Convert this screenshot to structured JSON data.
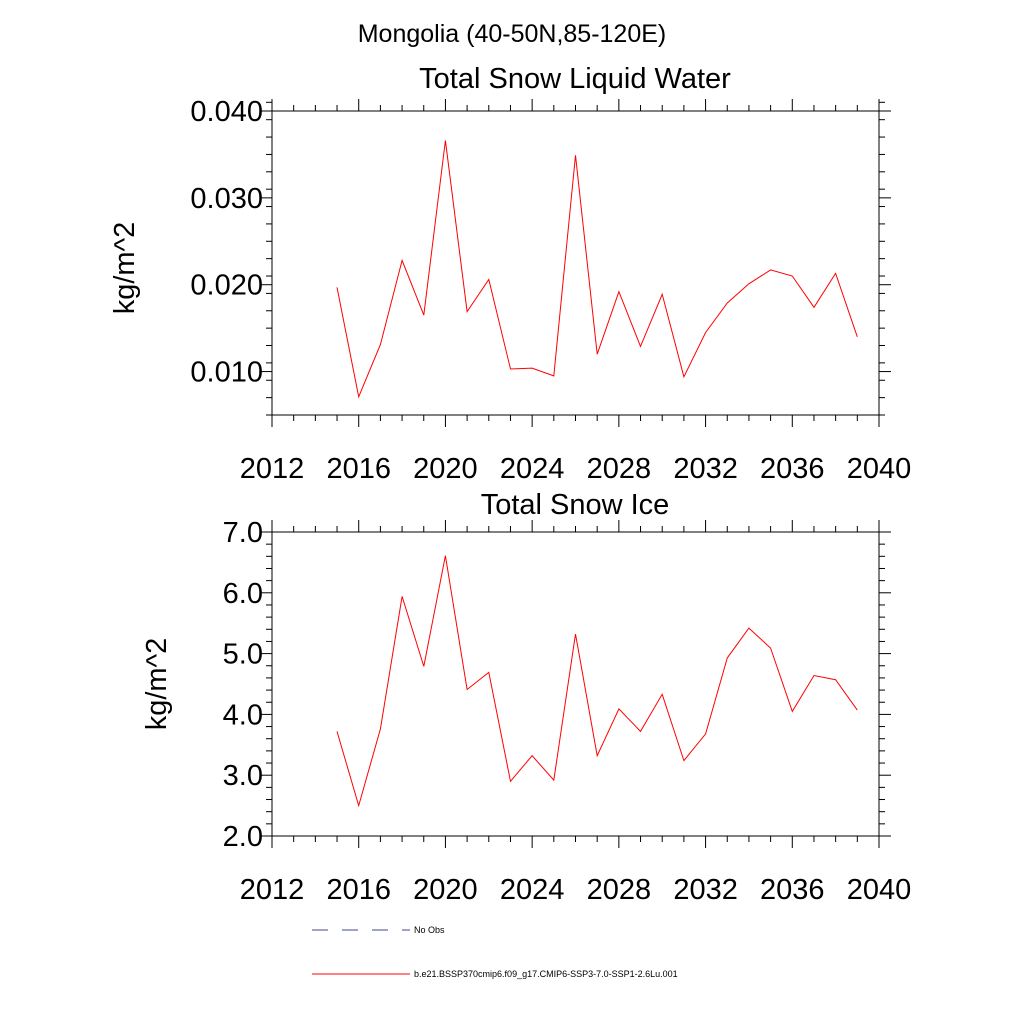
{
  "page_title": "Mongolia (40-50N,85-120E)",
  "chart_data": [
    {
      "type": "line",
      "title": "Total Snow Liquid Water",
      "ylabel": "kg/m^2",
      "xlabel": "",
      "xlim": [
        2012,
        2040
      ],
      "ylim": [
        0.005,
        0.04
      ],
      "xticks": [
        2012,
        2016,
        2020,
        2024,
        2028,
        2032,
        2036,
        2040
      ],
      "xtick_labels": [
        "2012",
        "2016",
        "2020",
        "2024",
        "2028",
        "2032",
        "2036",
        "2040"
      ],
      "yticks": [
        0.01,
        0.02,
        0.03,
        0.04
      ],
      "ytick_labels": [
        "0.010",
        "0.020",
        "0.030",
        "0.040"
      ],
      "y_minor_step": 0.002,
      "x_minor_step": 1,
      "x": [
        2015,
        2016,
        2017,
        2018,
        2019,
        2020,
        2021,
        2022,
        2023,
        2024,
        2025,
        2026,
        2027,
        2028,
        2029,
        2030,
        2031,
        2032,
        2033,
        2034,
        2035,
        2036,
        2037,
        2038,
        2039
      ],
      "series": [
        {
          "name": "b.e21.BSSP370cmip6.f09_g17.CMIP6-SSP3-7.0-SSP1-2.6Lu.001",
          "color": "#ff0000",
          "values": [
            0.0197,
            0.0071,
            0.0131,
            0.0228,
            0.0165,
            0.0366,
            0.0169,
            0.0206,
            0.0103,
            0.0104,
            0.0095,
            0.0349,
            0.012,
            0.0192,
            0.0129,
            0.0189,
            0.0094,
            0.0145,
            0.0179,
            0.0201,
            0.0217,
            0.021,
            0.0174,
            0.0213,
            0.014
          ]
        }
      ]
    },
    {
      "type": "line",
      "title": "Total Snow Ice",
      "ylabel": "kg/m^2",
      "xlabel": "",
      "xlim": [
        2012,
        2040
      ],
      "ylim": [
        2.0,
        7.0
      ],
      "xticks": [
        2012,
        2016,
        2020,
        2024,
        2028,
        2032,
        2036,
        2040
      ],
      "xtick_labels": [
        "2012",
        "2016",
        "2020",
        "2024",
        "2028",
        "2032",
        "2036",
        "2040"
      ],
      "yticks": [
        2.0,
        3.0,
        4.0,
        5.0,
        6.0,
        7.0
      ],
      "ytick_labels": [
        "2.0",
        "3.0",
        "4.0",
        "5.0",
        "6.0",
        "7.0"
      ],
      "y_minor_step": 0.2,
      "x_minor_step": 1,
      "x": [
        2015,
        2016,
        2017,
        2018,
        2019,
        2020,
        2021,
        2022,
        2023,
        2024,
        2025,
        2026,
        2027,
        2028,
        2029,
        2030,
        2031,
        2032,
        2033,
        2034,
        2035,
        2036,
        2037,
        2038,
        2039
      ],
      "series": [
        {
          "name": "b.e21.BSSP370cmip6.f09_g17.CMIP6-SSP3-7.0-SSP1-2.6Lu.001",
          "color": "#ff0000",
          "values": [
            3.72,
            2.5,
            3.76,
            5.94,
            4.79,
            6.61,
            4.41,
            4.69,
            2.9,
            3.32,
            2.92,
            5.32,
            3.32,
            4.09,
            3.72,
            4.33,
            3.24,
            3.68,
            4.93,
            5.42,
            5.09,
            4.05,
            4.64,
            4.57,
            4.07
          ]
        }
      ]
    }
  ],
  "legend": {
    "placement": "bottom",
    "entries": [
      {
        "label": "No Obs",
        "color": "#3b4a8c",
        "style": "dashed"
      },
      {
        "label": "b.e21.BSSP370cmip6.f09_g17.CMIP6-SSP3-7.0-SSP1-2.6Lu.001",
        "color": "#ff0000",
        "style": "solid"
      }
    ]
  }
}
